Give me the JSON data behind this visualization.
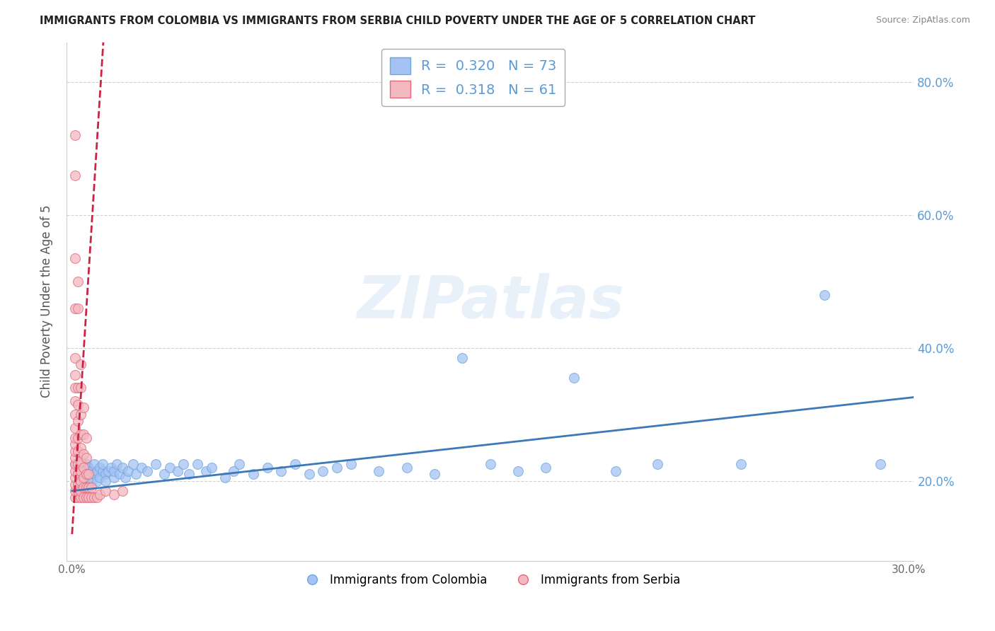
{
  "title": "IMMIGRANTS FROM COLOMBIA VS IMMIGRANTS FROM SERBIA CHILD POVERTY UNDER THE AGE OF 5 CORRELATION CHART",
  "source": "Source: ZipAtlas.com",
  "xlabel": "",
  "ylabel": "Child Poverty Under the Age of 5",
  "xlim": [
    -0.002,
    0.302
  ],
  "ylim": [
    0.08,
    0.86
  ],
  "xticks": [
    0.0,
    0.05,
    0.1,
    0.15,
    0.2,
    0.25,
    0.3
  ],
  "xticklabels": [
    "0.0%",
    "",
    "",
    "",
    "",
    "",
    "30.0%"
  ],
  "yticks": [
    0.2,
    0.4,
    0.6,
    0.8
  ],
  "yticklabels": [
    "20.0%",
    "40.0%",
    "60.0%",
    "80.0%"
  ],
  "colombia_color": "#a4c2f4",
  "serbia_color": "#f4b8c1",
  "colombia_edge_color": "#6fa8dc",
  "serbia_edge_color": "#e06c7a",
  "colombia_R": 0.32,
  "colombia_N": 73,
  "serbia_R": 0.318,
  "serbia_N": 61,
  "trendline_colombia_color": "#3d78b8",
  "trendline_serbia_color": "#cc2244",
  "watermark": "ZIPatlas",
  "legend_labels": [
    "Immigrants from Colombia",
    "Immigrants from Serbia"
  ],
  "colombia_scatter": [
    [
      0.001,
      0.225
    ],
    [
      0.002,
      0.215
    ],
    [
      0.002,
      0.195
    ],
    [
      0.003,
      0.23
    ],
    [
      0.003,
      0.21
    ],
    [
      0.003,
      0.2
    ],
    [
      0.004,
      0.22
    ],
    [
      0.004,
      0.205
    ],
    [
      0.004,
      0.19
    ],
    [
      0.005,
      0.225
    ],
    [
      0.005,
      0.21
    ],
    [
      0.005,
      0.195
    ],
    [
      0.006,
      0.22
    ],
    [
      0.006,
      0.205
    ],
    [
      0.007,
      0.215
    ],
    [
      0.007,
      0.2
    ],
    [
      0.008,
      0.225
    ],
    [
      0.008,
      0.21
    ],
    [
      0.009,
      0.215
    ],
    [
      0.009,
      0.2
    ],
    [
      0.01,
      0.22
    ],
    [
      0.01,
      0.205
    ],
    [
      0.011,
      0.215
    ],
    [
      0.011,
      0.225
    ],
    [
      0.012,
      0.21
    ],
    [
      0.012,
      0.2
    ],
    [
      0.013,
      0.215
    ],
    [
      0.014,
      0.22
    ],
    [
      0.015,
      0.205
    ],
    [
      0.015,
      0.215
    ],
    [
      0.016,
      0.225
    ],
    [
      0.017,
      0.21
    ],
    [
      0.018,
      0.22
    ],
    [
      0.019,
      0.205
    ],
    [
      0.02,
      0.215
    ],
    [
      0.022,
      0.225
    ],
    [
      0.023,
      0.21
    ],
    [
      0.025,
      0.22
    ],
    [
      0.027,
      0.215
    ],
    [
      0.03,
      0.225
    ],
    [
      0.033,
      0.21
    ],
    [
      0.035,
      0.22
    ],
    [
      0.038,
      0.215
    ],
    [
      0.04,
      0.225
    ],
    [
      0.042,
      0.21
    ],
    [
      0.045,
      0.225
    ],
    [
      0.048,
      0.215
    ],
    [
      0.05,
      0.22
    ],
    [
      0.055,
      0.205
    ],
    [
      0.058,
      0.215
    ],
    [
      0.06,
      0.225
    ],
    [
      0.065,
      0.21
    ],
    [
      0.07,
      0.22
    ],
    [
      0.075,
      0.215
    ],
    [
      0.08,
      0.225
    ],
    [
      0.085,
      0.21
    ],
    [
      0.09,
      0.215
    ],
    [
      0.095,
      0.22
    ],
    [
      0.1,
      0.225
    ],
    [
      0.11,
      0.215
    ],
    [
      0.12,
      0.22
    ],
    [
      0.13,
      0.21
    ],
    [
      0.14,
      0.385
    ],
    [
      0.15,
      0.225
    ],
    [
      0.16,
      0.215
    ],
    [
      0.17,
      0.22
    ],
    [
      0.18,
      0.355
    ],
    [
      0.195,
      0.215
    ],
    [
      0.21,
      0.225
    ],
    [
      0.24,
      0.225
    ],
    [
      0.27,
      0.48
    ],
    [
      0.29,
      0.225
    ]
  ],
  "serbia_scatter": [
    [
      0.001,
      0.175
    ],
    [
      0.001,
      0.185
    ],
    [
      0.001,
      0.195
    ],
    [
      0.001,
      0.205
    ],
    [
      0.001,
      0.215
    ],
    [
      0.001,
      0.225
    ],
    [
      0.001,
      0.235
    ],
    [
      0.001,
      0.245
    ],
    [
      0.001,
      0.255
    ],
    [
      0.001,
      0.265
    ],
    [
      0.001,
      0.28
    ],
    [
      0.001,
      0.3
    ],
    [
      0.001,
      0.32
    ],
    [
      0.001,
      0.34
    ],
    [
      0.001,
      0.36
    ],
    [
      0.001,
      0.385
    ],
    [
      0.002,
      0.175
    ],
    [
      0.002,
      0.185
    ],
    [
      0.002,
      0.195
    ],
    [
      0.002,
      0.21
    ],
    [
      0.002,
      0.225
    ],
    [
      0.002,
      0.245
    ],
    [
      0.002,
      0.265
    ],
    [
      0.002,
      0.29
    ],
    [
      0.002,
      0.315
    ],
    [
      0.002,
      0.34
    ],
    [
      0.002,
      0.5
    ],
    [
      0.003,
      0.175
    ],
    [
      0.003,
      0.185
    ],
    [
      0.003,
      0.2
    ],
    [
      0.003,
      0.215
    ],
    [
      0.003,
      0.23
    ],
    [
      0.003,
      0.25
    ],
    [
      0.003,
      0.27
    ],
    [
      0.003,
      0.3
    ],
    [
      0.003,
      0.34
    ],
    [
      0.003,
      0.375
    ],
    [
      0.004,
      0.175
    ],
    [
      0.004,
      0.19
    ],
    [
      0.004,
      0.205
    ],
    [
      0.004,
      0.22
    ],
    [
      0.004,
      0.24
    ],
    [
      0.004,
      0.27
    ],
    [
      0.004,
      0.31
    ],
    [
      0.005,
      0.175
    ],
    [
      0.005,
      0.19
    ],
    [
      0.005,
      0.21
    ],
    [
      0.005,
      0.235
    ],
    [
      0.005,
      0.265
    ],
    [
      0.006,
      0.175
    ],
    [
      0.006,
      0.19
    ],
    [
      0.006,
      0.21
    ],
    [
      0.007,
      0.175
    ],
    [
      0.007,
      0.19
    ],
    [
      0.008,
      0.175
    ],
    [
      0.009,
      0.175
    ],
    [
      0.01,
      0.18
    ],
    [
      0.012,
      0.185
    ],
    [
      0.015,
      0.18
    ],
    [
      0.018,
      0.185
    ]
  ],
  "serbia_outliers": [
    [
      0.001,
      0.72
    ],
    [
      0.001,
      0.66
    ],
    [
      0.001,
      0.535
    ],
    [
      0.001,
      0.46
    ],
    [
      0.002,
      0.46
    ]
  ]
}
